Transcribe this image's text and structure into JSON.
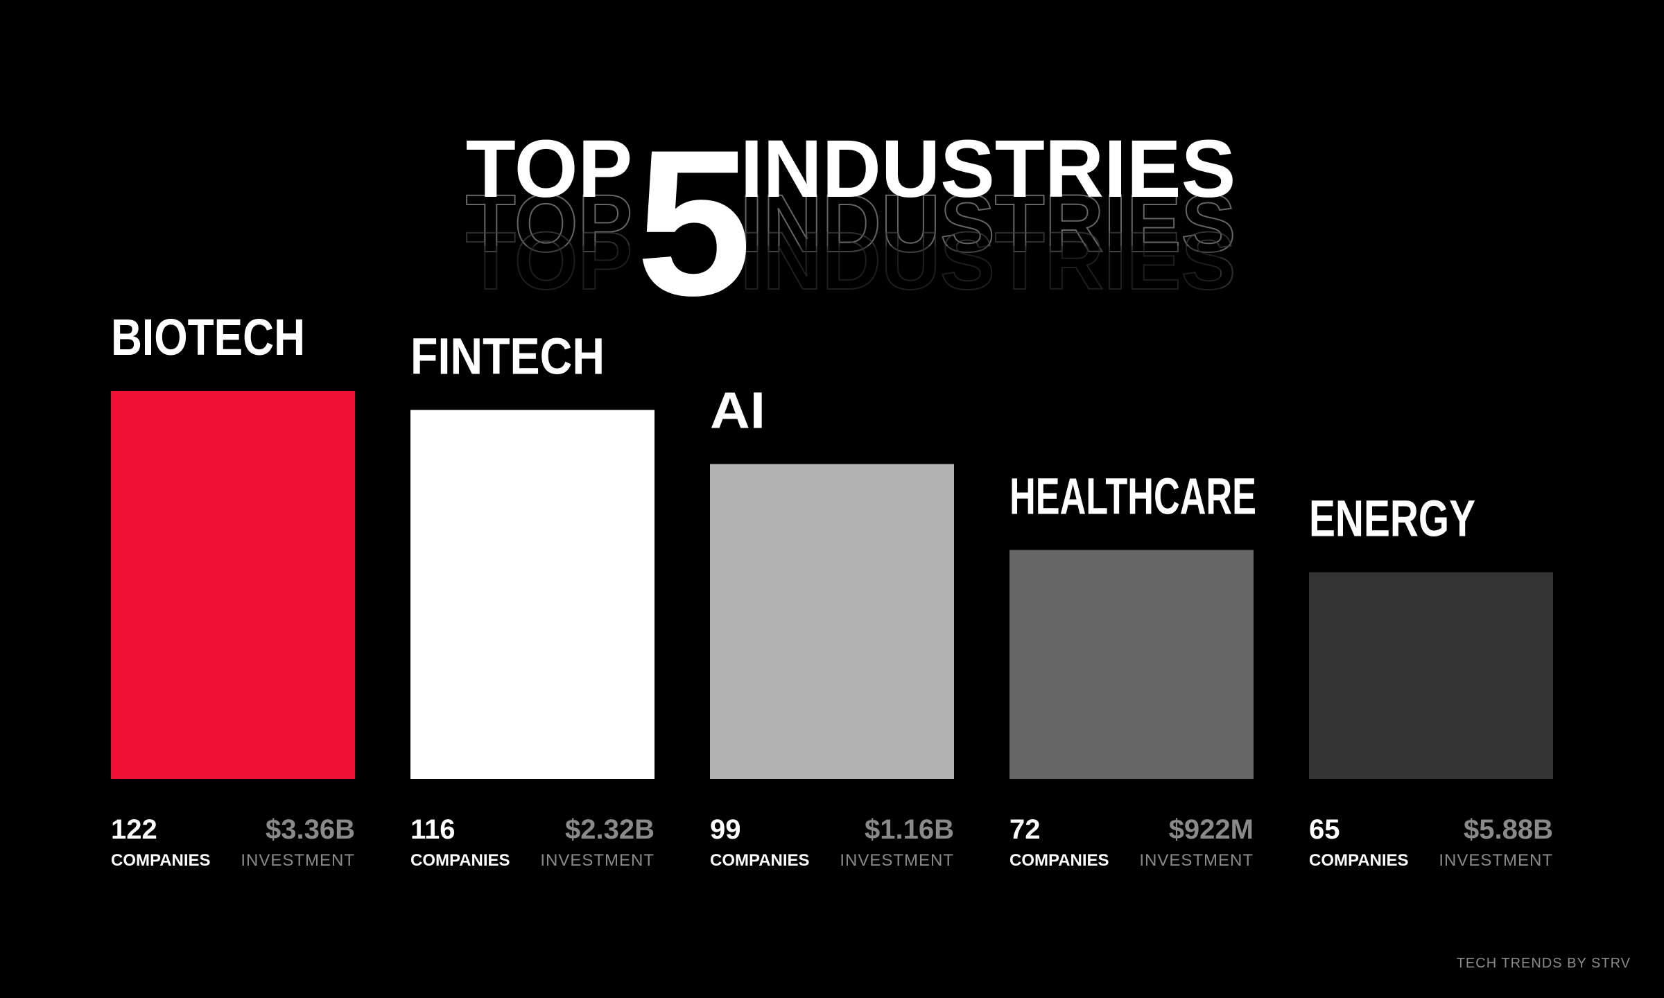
{
  "title": {
    "prefix": "TOP",
    "number": "5",
    "suffix": "INDUSTRIES"
  },
  "chart_data": {
    "type": "bar",
    "categories": [
      "BIOTECH",
      "FINTECH",
      "AI",
      "HEALTHCARE",
      "ENERGY"
    ],
    "series": [
      {
        "values": [
          122,
          116,
          99,
          72,
          65
        ]
      }
    ],
    "investment": [
      "$3.36B",
      "$2.32B",
      "$1.16B",
      "$922M",
      "$5.88B"
    ],
    "value_label": "COMPANIES",
    "investment_label": "INVESTMENT",
    "colors": [
      "#f01035",
      "#ffffff",
      "#b3b3b3",
      "#666666",
      "#333333"
    ],
    "ylim": [
      0,
      122
    ],
    "grid": false,
    "legend": "none"
  },
  "footer": {
    "credit": "TECH TRENDS BY STRV"
  }
}
